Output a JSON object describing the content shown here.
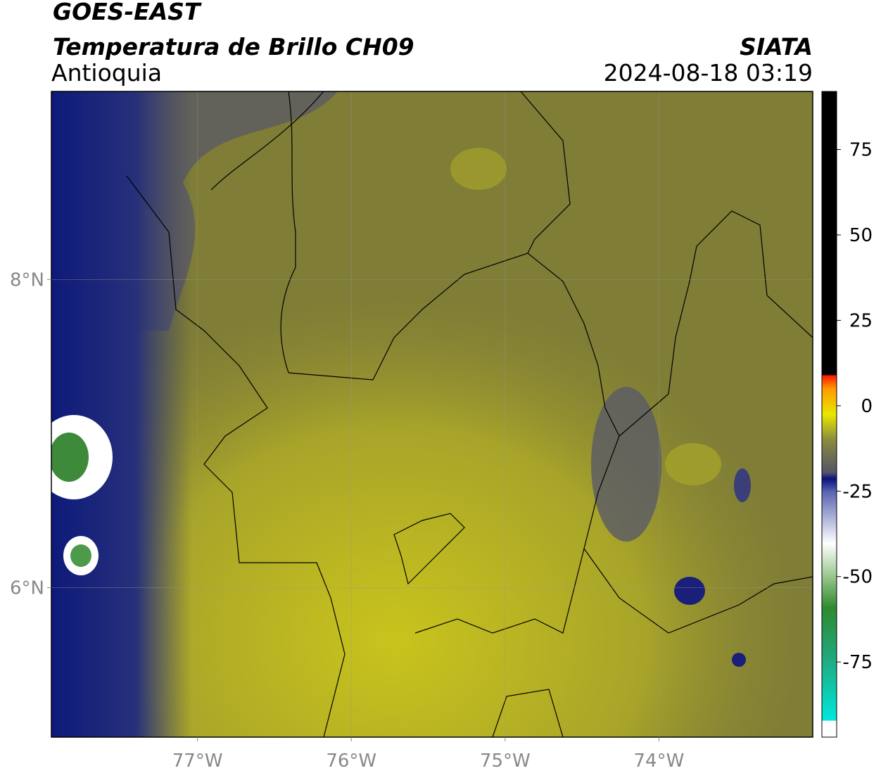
{
  "header": {
    "title": "GOES-EAST",
    "subtitle": "Temperatura de Brillo CH09",
    "region": "Antioquia",
    "source": "SIATA",
    "datetime": "2024-08-18 03:19"
  },
  "map": {
    "xlim": [
      -77.95,
      -73.0
    ],
    "ylim": [
      5.03,
      9.22
    ],
    "xticks": [
      {
        "value": -77,
        "label": "77°W"
      },
      {
        "value": -76,
        "label": "76°W"
      },
      {
        "value": -75,
        "label": "75°W"
      },
      {
        "value": -74,
        "label": "74°W"
      }
    ],
    "yticks": [
      {
        "value": 6,
        "label": "6°N"
      },
      {
        "value": 8,
        "label": "8°N"
      }
    ],
    "grid": true
  },
  "colorbar": {
    "lim": [
      -97,
      92
    ],
    "ticks": [
      75,
      50,
      25,
      0,
      -25,
      -50,
      -75
    ]
  }
}
